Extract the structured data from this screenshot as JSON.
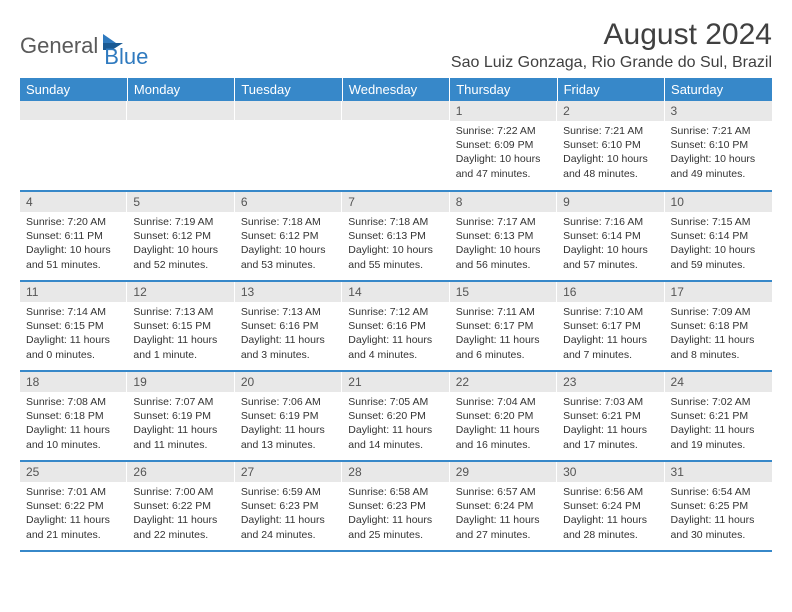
{
  "brand": {
    "textA": "General",
    "textB": "Blue"
  },
  "title": {
    "month": "August 2024",
    "location": "Sao Luiz Gonzaga, Rio Grande do Sul, Brazil"
  },
  "colors": {
    "header_bg": "#3788c9",
    "header_text": "#ffffff",
    "daynum_bg": "#e8e8e8",
    "daynum_text": "#555555",
    "body_text": "#333333",
    "cell_border": "#3788c9",
    "brand_gray": "#5a5a5a",
    "brand_blue": "#2f7abf",
    "title_color": "#404040"
  },
  "typography": {
    "body_font": "Arial",
    "title_size_pt": 22,
    "location_size_pt": 12,
    "weekday_size_pt": 10,
    "daynum_size_pt": 9,
    "content_size_pt": 8
  },
  "weekdays": [
    "Sunday",
    "Monday",
    "Tuesday",
    "Wednesday",
    "Thursday",
    "Friday",
    "Saturday"
  ],
  "weeks": [
    [
      {
        "n": "",
        "l": [
          "",
          "",
          "",
          ""
        ]
      },
      {
        "n": "",
        "l": [
          "",
          "",
          "",
          ""
        ]
      },
      {
        "n": "",
        "l": [
          "",
          "",
          "",
          ""
        ]
      },
      {
        "n": "",
        "l": [
          "",
          "",
          "",
          ""
        ]
      },
      {
        "n": "1",
        "l": [
          "Sunrise: 7:22 AM",
          "Sunset: 6:09 PM",
          "Daylight: 10 hours",
          "and 47 minutes."
        ]
      },
      {
        "n": "2",
        "l": [
          "Sunrise: 7:21 AM",
          "Sunset: 6:10 PM",
          "Daylight: 10 hours",
          "and 48 minutes."
        ]
      },
      {
        "n": "3",
        "l": [
          "Sunrise: 7:21 AM",
          "Sunset: 6:10 PM",
          "Daylight: 10 hours",
          "and 49 minutes."
        ]
      }
    ],
    [
      {
        "n": "4",
        "l": [
          "Sunrise: 7:20 AM",
          "Sunset: 6:11 PM",
          "Daylight: 10 hours",
          "and 51 minutes."
        ]
      },
      {
        "n": "5",
        "l": [
          "Sunrise: 7:19 AM",
          "Sunset: 6:12 PM",
          "Daylight: 10 hours",
          "and 52 minutes."
        ]
      },
      {
        "n": "6",
        "l": [
          "Sunrise: 7:18 AM",
          "Sunset: 6:12 PM",
          "Daylight: 10 hours",
          "and 53 minutes."
        ]
      },
      {
        "n": "7",
        "l": [
          "Sunrise: 7:18 AM",
          "Sunset: 6:13 PM",
          "Daylight: 10 hours",
          "and 55 minutes."
        ]
      },
      {
        "n": "8",
        "l": [
          "Sunrise: 7:17 AM",
          "Sunset: 6:13 PM",
          "Daylight: 10 hours",
          "and 56 minutes."
        ]
      },
      {
        "n": "9",
        "l": [
          "Sunrise: 7:16 AM",
          "Sunset: 6:14 PM",
          "Daylight: 10 hours",
          "and 57 minutes."
        ]
      },
      {
        "n": "10",
        "l": [
          "Sunrise: 7:15 AM",
          "Sunset: 6:14 PM",
          "Daylight: 10 hours",
          "and 59 minutes."
        ]
      }
    ],
    [
      {
        "n": "11",
        "l": [
          "Sunrise: 7:14 AM",
          "Sunset: 6:15 PM",
          "Daylight: 11 hours",
          "and 0 minutes."
        ]
      },
      {
        "n": "12",
        "l": [
          "Sunrise: 7:13 AM",
          "Sunset: 6:15 PM",
          "Daylight: 11 hours",
          "and 1 minute."
        ]
      },
      {
        "n": "13",
        "l": [
          "Sunrise: 7:13 AM",
          "Sunset: 6:16 PM",
          "Daylight: 11 hours",
          "and 3 minutes."
        ]
      },
      {
        "n": "14",
        "l": [
          "Sunrise: 7:12 AM",
          "Sunset: 6:16 PM",
          "Daylight: 11 hours",
          "and 4 minutes."
        ]
      },
      {
        "n": "15",
        "l": [
          "Sunrise: 7:11 AM",
          "Sunset: 6:17 PM",
          "Daylight: 11 hours",
          "and 6 minutes."
        ]
      },
      {
        "n": "16",
        "l": [
          "Sunrise: 7:10 AM",
          "Sunset: 6:17 PM",
          "Daylight: 11 hours",
          "and 7 minutes."
        ]
      },
      {
        "n": "17",
        "l": [
          "Sunrise: 7:09 AM",
          "Sunset: 6:18 PM",
          "Daylight: 11 hours",
          "and 8 minutes."
        ]
      }
    ],
    [
      {
        "n": "18",
        "l": [
          "Sunrise: 7:08 AM",
          "Sunset: 6:18 PM",
          "Daylight: 11 hours",
          "and 10 minutes."
        ]
      },
      {
        "n": "19",
        "l": [
          "Sunrise: 7:07 AM",
          "Sunset: 6:19 PM",
          "Daylight: 11 hours",
          "and 11 minutes."
        ]
      },
      {
        "n": "20",
        "l": [
          "Sunrise: 7:06 AM",
          "Sunset: 6:19 PM",
          "Daylight: 11 hours",
          "and 13 minutes."
        ]
      },
      {
        "n": "21",
        "l": [
          "Sunrise: 7:05 AM",
          "Sunset: 6:20 PM",
          "Daylight: 11 hours",
          "and 14 minutes."
        ]
      },
      {
        "n": "22",
        "l": [
          "Sunrise: 7:04 AM",
          "Sunset: 6:20 PM",
          "Daylight: 11 hours",
          "and 16 minutes."
        ]
      },
      {
        "n": "23",
        "l": [
          "Sunrise: 7:03 AM",
          "Sunset: 6:21 PM",
          "Daylight: 11 hours",
          "and 17 minutes."
        ]
      },
      {
        "n": "24",
        "l": [
          "Sunrise: 7:02 AM",
          "Sunset: 6:21 PM",
          "Daylight: 11 hours",
          "and 19 minutes."
        ]
      }
    ],
    [
      {
        "n": "25",
        "l": [
          "Sunrise: 7:01 AM",
          "Sunset: 6:22 PM",
          "Daylight: 11 hours",
          "and 21 minutes."
        ]
      },
      {
        "n": "26",
        "l": [
          "Sunrise: 7:00 AM",
          "Sunset: 6:22 PM",
          "Daylight: 11 hours",
          "and 22 minutes."
        ]
      },
      {
        "n": "27",
        "l": [
          "Sunrise: 6:59 AM",
          "Sunset: 6:23 PM",
          "Daylight: 11 hours",
          "and 24 minutes."
        ]
      },
      {
        "n": "28",
        "l": [
          "Sunrise: 6:58 AM",
          "Sunset: 6:23 PM",
          "Daylight: 11 hours",
          "and 25 minutes."
        ]
      },
      {
        "n": "29",
        "l": [
          "Sunrise: 6:57 AM",
          "Sunset: 6:24 PM",
          "Daylight: 11 hours",
          "and 27 minutes."
        ]
      },
      {
        "n": "30",
        "l": [
          "Sunrise: 6:56 AM",
          "Sunset: 6:24 PM",
          "Daylight: 11 hours",
          "and 28 minutes."
        ]
      },
      {
        "n": "31",
        "l": [
          "Sunrise: 6:54 AM",
          "Sunset: 6:25 PM",
          "Daylight: 11 hours",
          "and 30 minutes."
        ]
      }
    ]
  ]
}
